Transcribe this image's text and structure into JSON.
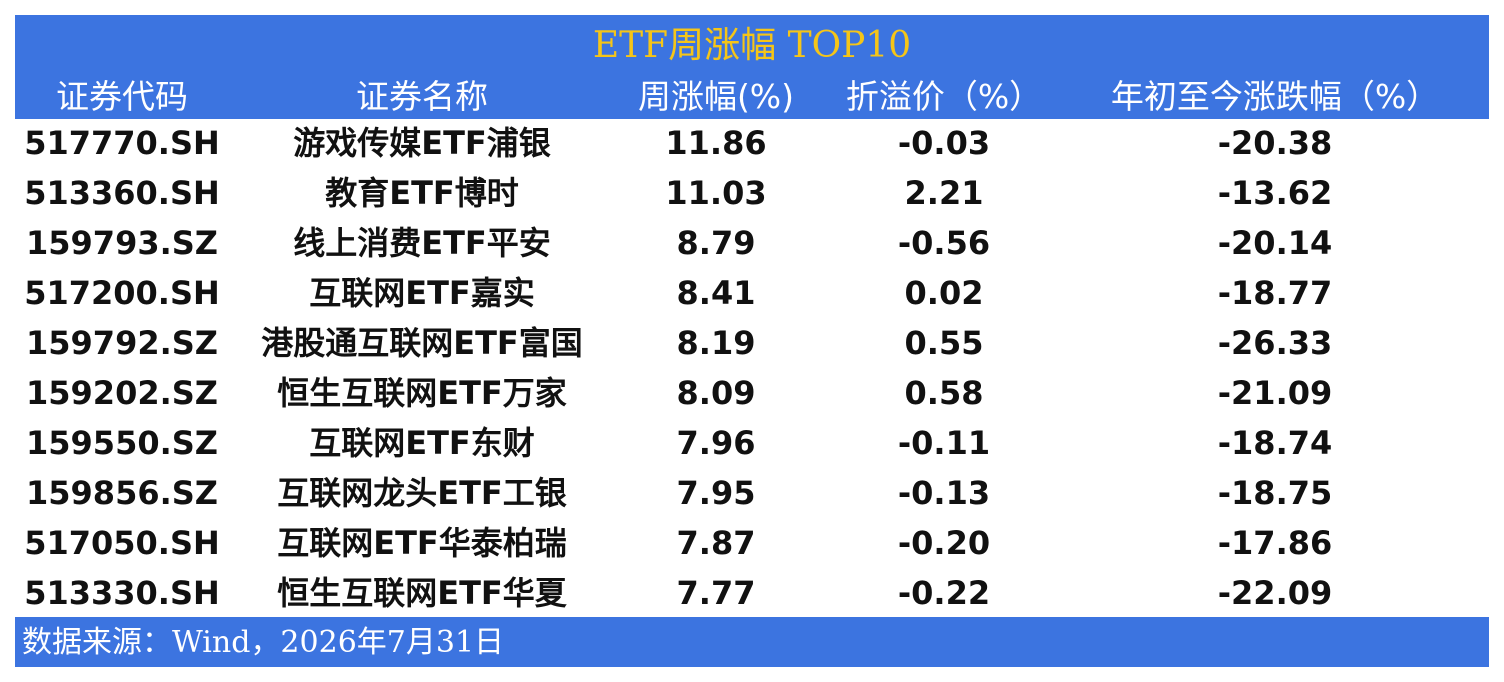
{
  "header": {
    "title": "ETF周涨幅 TOP10"
  },
  "table": {
    "columns": [
      "证券代码",
      "证券名称",
      "周涨幅(%)",
      "折溢价（%）",
      "年初至今涨跌幅（%）"
    ],
    "rows": [
      [
        "517770.SH",
        "游戏传媒ETF浦银",
        "11.86",
        "-0.03",
        "-20.38"
      ],
      [
        "513360.SH",
        "教育ETF博时",
        "11.03",
        "2.21",
        "-13.62"
      ],
      [
        "159793.SZ",
        "线上消费ETF平安",
        "8.79",
        "-0.56",
        "-20.14"
      ],
      [
        "517200.SH",
        "互联网ETF嘉实",
        "8.41",
        "0.02",
        "-18.77"
      ],
      [
        "159792.SZ",
        "港股通互联网ETF富国",
        "8.19",
        "0.55",
        "-26.33"
      ],
      [
        "159202.SZ",
        "恒生互联网ETF万家",
        "8.09",
        "0.58",
        "-21.09"
      ],
      [
        "159550.SZ",
        "互联网ETF东财",
        "7.96",
        "-0.11",
        "-18.74"
      ],
      [
        "159856.SZ",
        "互联网龙头ETF工银",
        "7.95",
        "-0.13",
        "-18.75"
      ],
      [
        "517050.SH",
        "互联网ETF华泰柏瑞",
        "7.87",
        "-0.20",
        "-17.86"
      ],
      [
        "513330.SH",
        "恒生互联网ETF华夏",
        "7.77",
        "-0.22",
        "-22.09"
      ]
    ]
  },
  "footer": {
    "source": "数据来源：Wind，2026年7月31日"
  }
}
